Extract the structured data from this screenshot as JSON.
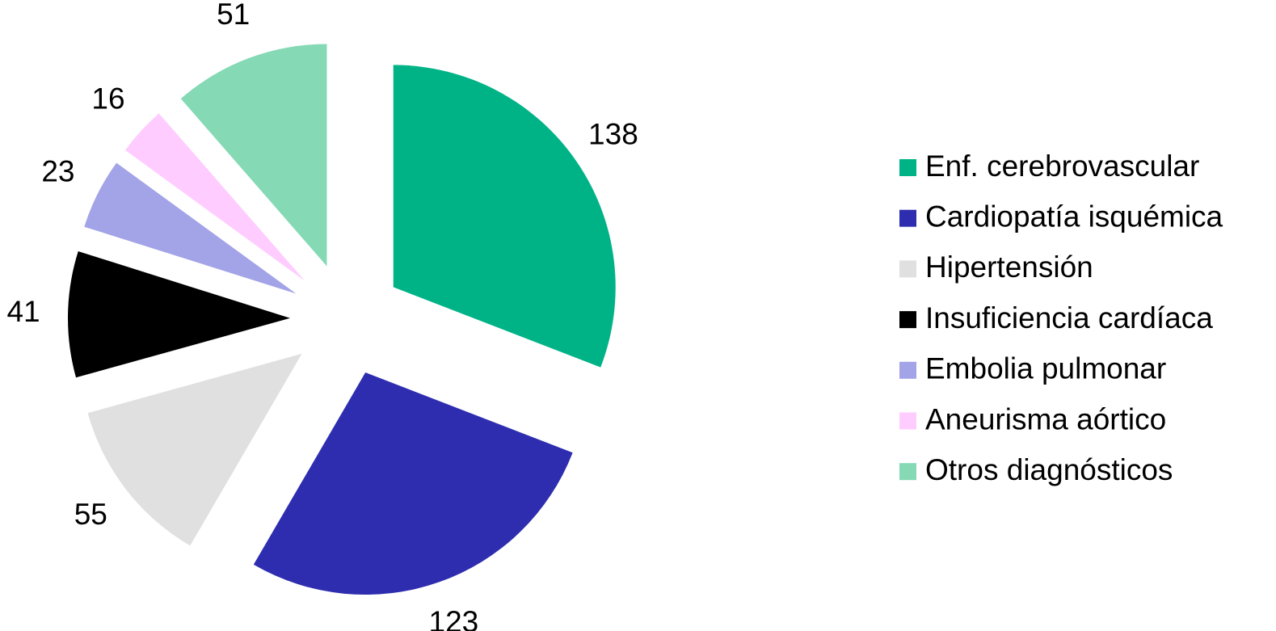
{
  "chart_data": {
    "type": "pie",
    "categories": [
      "Enf. cerebrovascular",
      "Cardiopatía isquémica",
      "Hipertensión",
      "Insuficiencia cardíaca",
      "Embolia pulmonar",
      "Aneurisma aórtico",
      "Otros diagnósticos"
    ],
    "values": [
      138,
      123,
      55,
      41,
      23,
      16,
      51
    ],
    "colors": [
      "#00b386",
      "#2e2db0",
      "#e0e0e0",
      "#000000",
      "#a3a3e8",
      "#ffccff",
      "#85d9b5"
    ],
    "legend": "right"
  }
}
